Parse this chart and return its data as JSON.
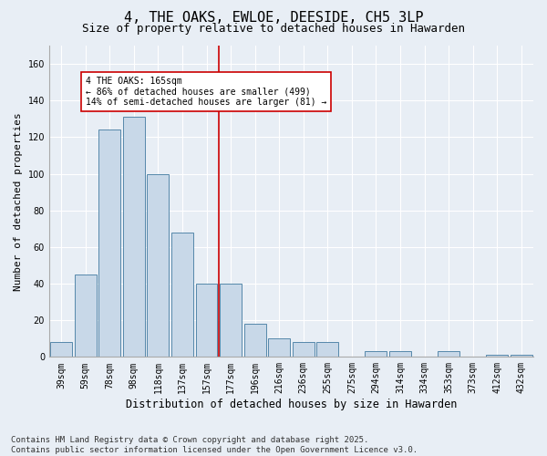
{
  "title": "4, THE OAKS, EWLOE, DEESIDE, CH5 3LP",
  "subtitle": "Size of property relative to detached houses in Hawarden",
  "xlabel": "Distribution of detached houses by size in Hawarden",
  "ylabel": "Number of detached properties",
  "categories": [
    "39sqm",
    "59sqm",
    "78sqm",
    "98sqm",
    "118sqm",
    "137sqm",
    "157sqm",
    "177sqm",
    "196sqm",
    "216sqm",
    "236sqm",
    "255sqm",
    "275sqm",
    "294sqm",
    "314sqm",
    "334sqm",
    "353sqm",
    "373sqm",
    "412sqm",
    "432sqm"
  ],
  "values": [
    8,
    45,
    124,
    131,
    100,
    68,
    40,
    40,
    18,
    10,
    8,
    8,
    0,
    3,
    3,
    0,
    3,
    0,
    1,
    1
  ],
  "bar_color": "#c8d8e8",
  "bar_edge_color": "#5588aa",
  "vline_color": "#cc0000",
  "vline_x_index": 7,
  "annotation_text": "4 THE OAKS: 165sqm\n← 86% of detached houses are smaller (499)\n14% of semi-detached houses are larger (81) →",
  "annotation_box_facecolor": "#ffffff",
  "annotation_box_edgecolor": "#cc0000",
  "ylim": [
    0,
    170
  ],
  "yticks": [
    0,
    20,
    40,
    60,
    80,
    100,
    120,
    140,
    160
  ],
  "bg_color": "#e8eef5",
  "grid_color": "#ffffff",
  "footer": "Contains HM Land Registry data © Crown copyright and database right 2025.\nContains public sector information licensed under the Open Government Licence v3.0.",
  "title_fontsize": 11,
  "subtitle_fontsize": 9,
  "xlabel_fontsize": 8.5,
  "ylabel_fontsize": 8,
  "tick_fontsize": 7,
  "footer_fontsize": 6.5,
  "annot_fontsize": 7
}
